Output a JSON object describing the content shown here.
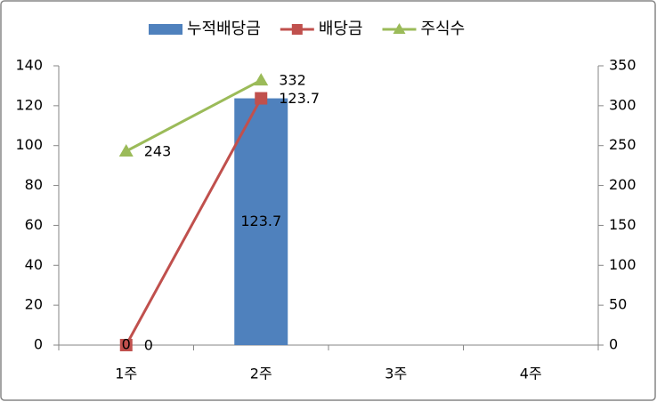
{
  "chart_data": {
    "type": "combo",
    "categories": [
      "1주",
      "2주",
      "3주",
      "4주"
    ],
    "series": [
      {
        "name": "누적배당금",
        "type": "bar",
        "color": "#4f81bd",
        "values": [
          0,
          123.7,
          null,
          null
        ]
      },
      {
        "name": "배당금",
        "type": "line",
        "marker": "square",
        "color": "#c0504d",
        "values": [
          0,
          123.7,
          null,
          null
        ]
      },
      {
        "name": "주식수",
        "type": "line",
        "marker": "triangle",
        "color": "#9bbb59",
        "axis": "y2",
        "values": [
          243,
          332,
          null,
          null
        ]
      }
    ],
    "ylim": [
      0,
      140
    ],
    "yticks": [
      0,
      20,
      40,
      60,
      80,
      100,
      120,
      140
    ],
    "y2lim": [
      0,
      350
    ],
    "y2ticks": [
      0,
      50,
      100,
      150,
      200,
      250,
      300,
      350
    ],
    "legend": "top",
    "grid": false
  }
}
